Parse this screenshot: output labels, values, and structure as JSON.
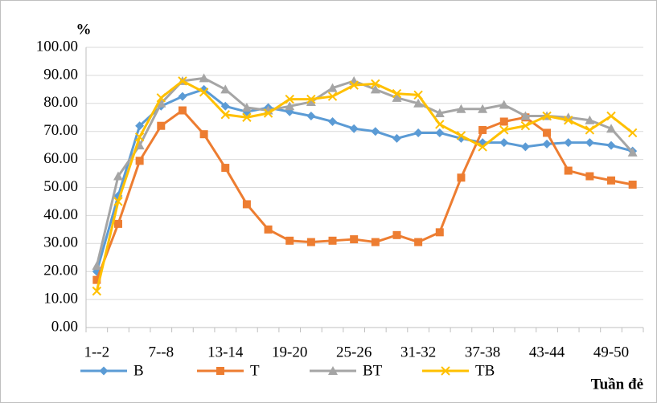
{
  "chart_data": {
    "type": "line",
    "y_unit_label": "%",
    "x_axis_label": "Tuần đẻ",
    "categories": [
      "1--2",
      null,
      null,
      "7--8",
      null,
      null,
      "13-14",
      null,
      null,
      "19-20",
      null,
      null,
      "25-26",
      null,
      null,
      "31-32",
      null,
      null,
      "37-38",
      null,
      null,
      "43-44",
      null,
      null,
      "49-50",
      null
    ],
    "series": [
      {
        "name": "B",
        "color": "#5b9bd5",
        "marker": "diamond",
        "values": [
          20,
          47,
          72,
          79,
          82.5,
          85,
          79,
          77,
          78.5,
          77,
          75.5,
          73.5,
          71,
          70,
          67.5,
          69.5,
          69.5,
          67.5,
          66,
          66,
          64.5,
          65.5,
          66,
          66,
          65,
          63
        ]
      },
      {
        "name": "T",
        "color": "#ed7d31",
        "marker": "square",
        "values": [
          17,
          37,
          59.5,
          72,
          77.5,
          69,
          57,
          44,
          35,
          31,
          30.5,
          31,
          31.5,
          30.5,
          33,
          30.5,
          34,
          53.5,
          70.5,
          73.5,
          75,
          69.5,
          56,
          54,
          52.5,
          51
        ]
      },
      {
        "name": "BT",
        "color": "#a5a5a5",
        "marker": "triangle",
        "values": [
          22,
          54,
          65,
          80,
          88,
          89,
          85,
          78.5,
          77.5,
          79,
          80.5,
          85.5,
          88,
          85,
          82,
          80,
          76.5,
          78,
          78,
          79.5,
          75.5,
          75.5,
          75,
          74,
          71,
          62.5
        ]
      },
      {
        "name": "TB",
        "color": "#ffc000",
        "marker": "x",
        "values": [
          13,
          45,
          68,
          82,
          88,
          84,
          76,
          75,
          76.5,
          81.5,
          81.5,
          82.5,
          86.5,
          87,
          83.5,
          83,
          72.5,
          68.5,
          64.5,
          70.5,
          72,
          75.5,
          74,
          70.5,
          75.5,
          69.5
        ]
      }
    ],
    "ylim": [
      0,
      100
    ],
    "yticks": [
      {
        "value": 0,
        "label": "0.00"
      },
      {
        "value": 10,
        "label": "10.00"
      },
      {
        "value": 20,
        "label": "20.00"
      },
      {
        "value": 30,
        "label": "30.00"
      },
      {
        "value": 40,
        "label": "40.00"
      },
      {
        "value": 50,
        "label": "50.00"
      },
      {
        "value": 60,
        "label": "60.00"
      },
      {
        "value": 70,
        "label": "70.00"
      },
      {
        "value": 80,
        "label": "80.00"
      },
      {
        "value": 90,
        "label": "90.00"
      },
      {
        "value": 100,
        "label": "100.00"
      }
    ],
    "grid": true,
    "legend": "bottom"
  }
}
